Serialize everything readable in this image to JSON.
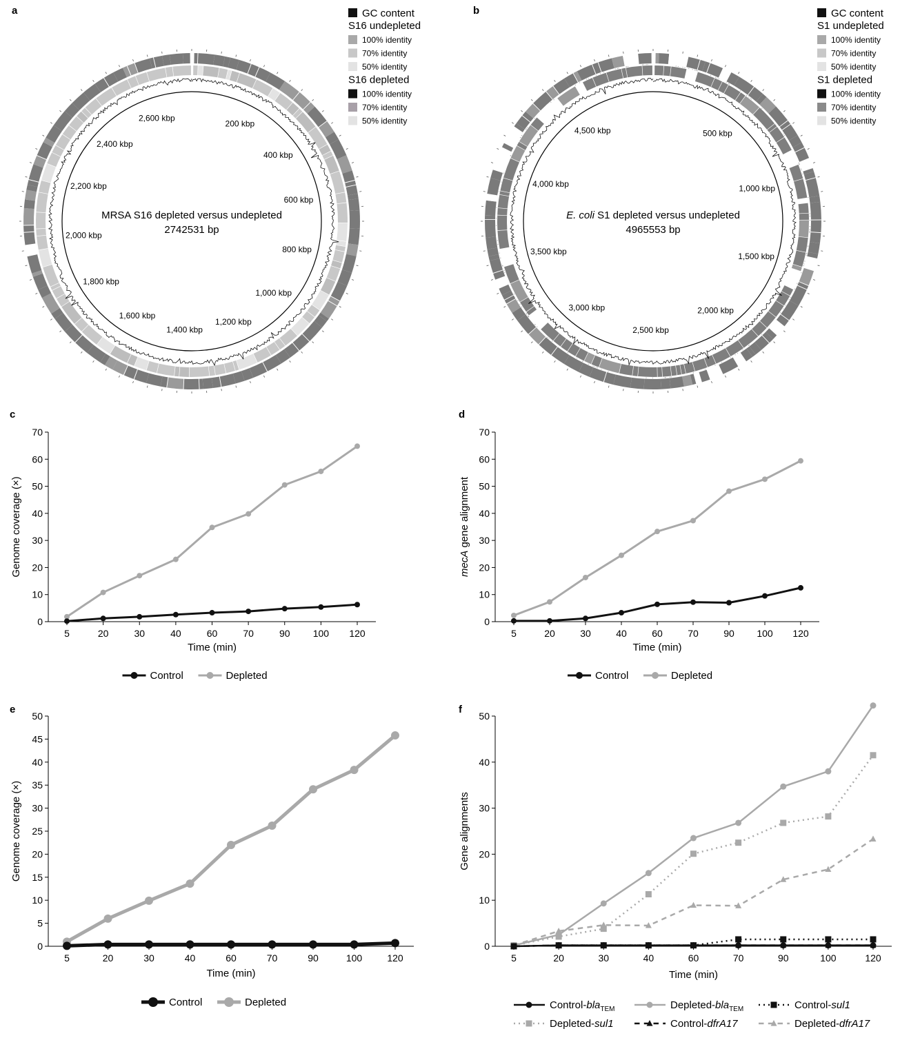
{
  "colors": {
    "dark": "#111111",
    "mid": "#7a7a7a",
    "light": "#a9a9a9",
    "lighter": "#c8c8c8",
    "lightest": "#e3e3e3",
    "mauve": "#a8a0a8"
  },
  "circular": [
    {
      "panel": "a",
      "title": "MRSA S16 depleted versus undepleted",
      "subtitle": "2742531 bp",
      "length_bp": 2742531,
      "ticks": [
        {
          "bp": 200000,
          "label": "200 kbp"
        },
        {
          "bp": 400000,
          "label": "400 kbp"
        },
        {
          "bp": 600000,
          "label": "600 kbp"
        },
        {
          "bp": 800000,
          "label": "800 kbp"
        },
        {
          "bp": 1000000,
          "label": "1,000 kbp"
        },
        {
          "bp": 1200000,
          "label": "1,200 kbp"
        },
        {
          "bp": 1400000,
          "label": "1,400 kbp"
        },
        {
          "bp": 1600000,
          "label": "1,600 kbp"
        },
        {
          "bp": 1800000,
          "label": "1,800 kbp"
        },
        {
          "bp": 2000000,
          "label": "2,000 kbp"
        },
        {
          "bp": 2200000,
          "label": "2,200 kbp"
        },
        {
          "bp": 2400000,
          "label": "2,400 kbp"
        },
        {
          "bp": 2600000,
          "label": "2,600 kbp"
        }
      ],
      "legend": [
        {
          "kind": "item",
          "label": "GC content",
          "color": "#111111"
        },
        {
          "kind": "heading",
          "label": "S16 undepleted"
        },
        {
          "kind": "item",
          "label": "100% identity",
          "color": "#a9a9a9"
        },
        {
          "kind": "item",
          "label": "70% identity",
          "color": "#c8c8c8"
        },
        {
          "kind": "item",
          "label": "50% identity",
          "color": "#e3e3e3"
        },
        {
          "kind": "heading",
          "label": "S16 depleted"
        },
        {
          "kind": "item",
          "label": "100% identity",
          "color": "#111111"
        },
        {
          "kind": "item",
          "label": "70% identity",
          "color": "#a8a0a8"
        },
        {
          "kind": "item",
          "label": "50% identity",
          "color": "#e3e3e3"
        }
      ]
    },
    {
      "panel": "b",
      "title_italic": "E. coli",
      "title_rest": " S1 depleted versus undepleted",
      "subtitle": "4965553 bp",
      "length_bp": 4965553,
      "ticks": [
        {
          "bp": 500000,
          "label": "500 kbp"
        },
        {
          "bp": 1000000,
          "label": "1,000 kbp"
        },
        {
          "bp": 1500000,
          "label": "1,500 kbp"
        },
        {
          "bp": 2000000,
          "label": "2,000 kbp"
        },
        {
          "bp": 2500000,
          "label": "2,500 kbp"
        },
        {
          "bp": 3000000,
          "label": "3,000 kbp"
        },
        {
          "bp": 3500000,
          "label": "3,500 kbp"
        },
        {
          "bp": 4000000,
          "label": "4,000 kbp"
        },
        {
          "bp": 4500000,
          "label": "4,500 kbp"
        }
      ],
      "legend": [
        {
          "kind": "item",
          "label": "GC content",
          "color": "#111111"
        },
        {
          "kind": "heading",
          "label": "S1 undepleted"
        },
        {
          "kind": "item",
          "label": "100% identity",
          "color": "#a9a9a9"
        },
        {
          "kind": "item",
          "label": "70% identity",
          "color": "#c8c8c8"
        },
        {
          "kind": "item",
          "label": "50% identity",
          "color": "#e3e3e3"
        },
        {
          "kind": "heading",
          "label": "S1 depleted"
        },
        {
          "kind": "item",
          "label": "100% identity",
          "color": "#111111"
        },
        {
          "kind": "item",
          "label": "70% identity",
          "color": "#8a8a8a"
        },
        {
          "kind": "item",
          "label": "50% identity",
          "color": "#e3e3e3"
        }
      ]
    }
  ],
  "chart_data": [
    {
      "panel": "c",
      "type": "line",
      "categories": [
        "5",
        "20",
        "30",
        "40",
        "60",
        "70",
        "90",
        "100",
        "120"
      ],
      "xlabel": "Time (min)",
      "ylabel": "Genome coverage (×)",
      "ylim": [
        0,
        70
      ],
      "yticks": [
        0,
        10,
        20,
        30,
        40,
        50,
        60,
        70
      ],
      "series": [
        {
          "name": "Control",
          "color": "#111111",
          "values": [
            0.2,
            1.2,
            1.8,
            2.6,
            3.3,
            3.8,
            4.8,
            5.4,
            6.3
          ]
        },
        {
          "name": "Depleted",
          "color": "#a9a9a9",
          "values": [
            1.8,
            10.8,
            17.0,
            23.0,
            34.8,
            39.8,
            50.5,
            55.5,
            64.8
          ]
        }
      ],
      "legend": "bottom"
    },
    {
      "panel": "d",
      "type": "line",
      "categories": [
        "5",
        "20",
        "30",
        "40",
        "60",
        "70",
        "90",
        "100",
        "120"
      ],
      "xlabel": "Time (min)",
      "ylabel_italic": "mecA",
      "ylabel_rest": " gene alignment",
      "ylim": [
        0,
        70
      ],
      "yticks": [
        0,
        10,
        20,
        30,
        40,
        50,
        60,
        70
      ],
      "series": [
        {
          "name": "Control",
          "color": "#111111",
          "values": [
            0.3,
            0.3,
            1.2,
            3.3,
            6.4,
            7.2,
            7.0,
            9.5,
            12.5
          ]
        },
        {
          "name": "Depleted",
          "color": "#a9a9a9",
          "values": [
            2.3,
            7.3,
            16.3,
            24.5,
            33.3,
            37.3,
            48.2,
            52.6,
            59.4
          ]
        }
      ],
      "legend": "bottom"
    },
    {
      "panel": "e",
      "type": "line",
      "categories": [
        "5",
        "20",
        "30",
        "40",
        "60",
        "70",
        "90",
        "100",
        "120"
      ],
      "xlabel": "Time (min)",
      "ylabel": "Genome coverage (×)",
      "ylim": [
        0,
        50
      ],
      "yticks": [
        0,
        5,
        10,
        15,
        20,
        25,
        30,
        35,
        40,
        45,
        50
      ],
      "series": [
        {
          "name": "Control",
          "color": "#111111",
          "values": [
            0.1,
            0.4,
            0.4,
            0.4,
            0.4,
            0.4,
            0.4,
            0.4,
            0.7
          ]
        },
        {
          "name": "Depleted",
          "color": "#a9a9a9",
          "values": [
            1.0,
            6.0,
            9.9,
            13.6,
            22.0,
            26.2,
            34.1,
            38.3,
            45.8
          ]
        }
      ],
      "legend": "bottom"
    },
    {
      "panel": "f",
      "type": "line",
      "categories": [
        "5",
        "20",
        "30",
        "40",
        "60",
        "70",
        "90",
        "100",
        "120"
      ],
      "xlabel": "Time (min)",
      "ylabel": "Gene alignments",
      "ylim": [
        0,
        50
      ],
      "yticks": [
        0,
        10,
        20,
        30,
        40,
        50
      ],
      "series": [
        {
          "name": "Control-blaTEM",
          "label": "Control-",
          "label_italic": "bla",
          "label_sub": "TEM",
          "color": "#111111",
          "dash": "solid",
          "marker": "circle",
          "values": [
            0,
            0.2,
            0.2,
            0.2,
            0.2,
            0.2,
            0.2,
            0.2,
            0.2
          ]
        },
        {
          "name": "Depleted-blaTEM",
          "label": "Depleted-",
          "label_italic": "bla",
          "label_sub": "TEM",
          "color": "#a9a9a9",
          "dash": "solid",
          "marker": "circle",
          "values": [
            0.2,
            2.5,
            9.3,
            15.9,
            23.5,
            26.8,
            34.7,
            38.0,
            52.3
          ]
        },
        {
          "name": "Control-sul1",
          "label": "Control-",
          "label_italic": "sul1",
          "color": "#111111",
          "dash": "dotted",
          "marker": "square",
          "values": [
            0,
            0.2,
            0.2,
            0.2,
            0.2,
            1.5,
            1.5,
            1.5,
            1.5
          ]
        },
        {
          "name": "Depleted-sul1",
          "label": "Depleted-",
          "label_italic": "sul1",
          "color": "#a9a9a9",
          "dash": "dotted",
          "marker": "square",
          "values": [
            0.2,
            2.1,
            3.8,
            11.3,
            20.1,
            22.5,
            26.8,
            28.2,
            41.5
          ]
        },
        {
          "name": "Control-dfrA17",
          "label": "Control-",
          "label_italic": "dfrA17",
          "color": "#111111",
          "dash": "dashed",
          "marker": "triangle",
          "values": [
            0,
            0.2,
            0.2,
            0.2,
            0.2,
            0.2,
            0.2,
            0.2,
            0.2
          ]
        },
        {
          "name": "Depleted-dfrA17",
          "label": "Depleted-",
          "label_italic": "dfrA17",
          "color": "#a9a9a9",
          "dash": "dashed",
          "marker": "triangle",
          "values": [
            0.2,
            3.3,
            4.6,
            4.5,
            8.9,
            8.8,
            14.5,
            16.7,
            23.3
          ]
        }
      ],
      "legend": "bottom"
    }
  ]
}
